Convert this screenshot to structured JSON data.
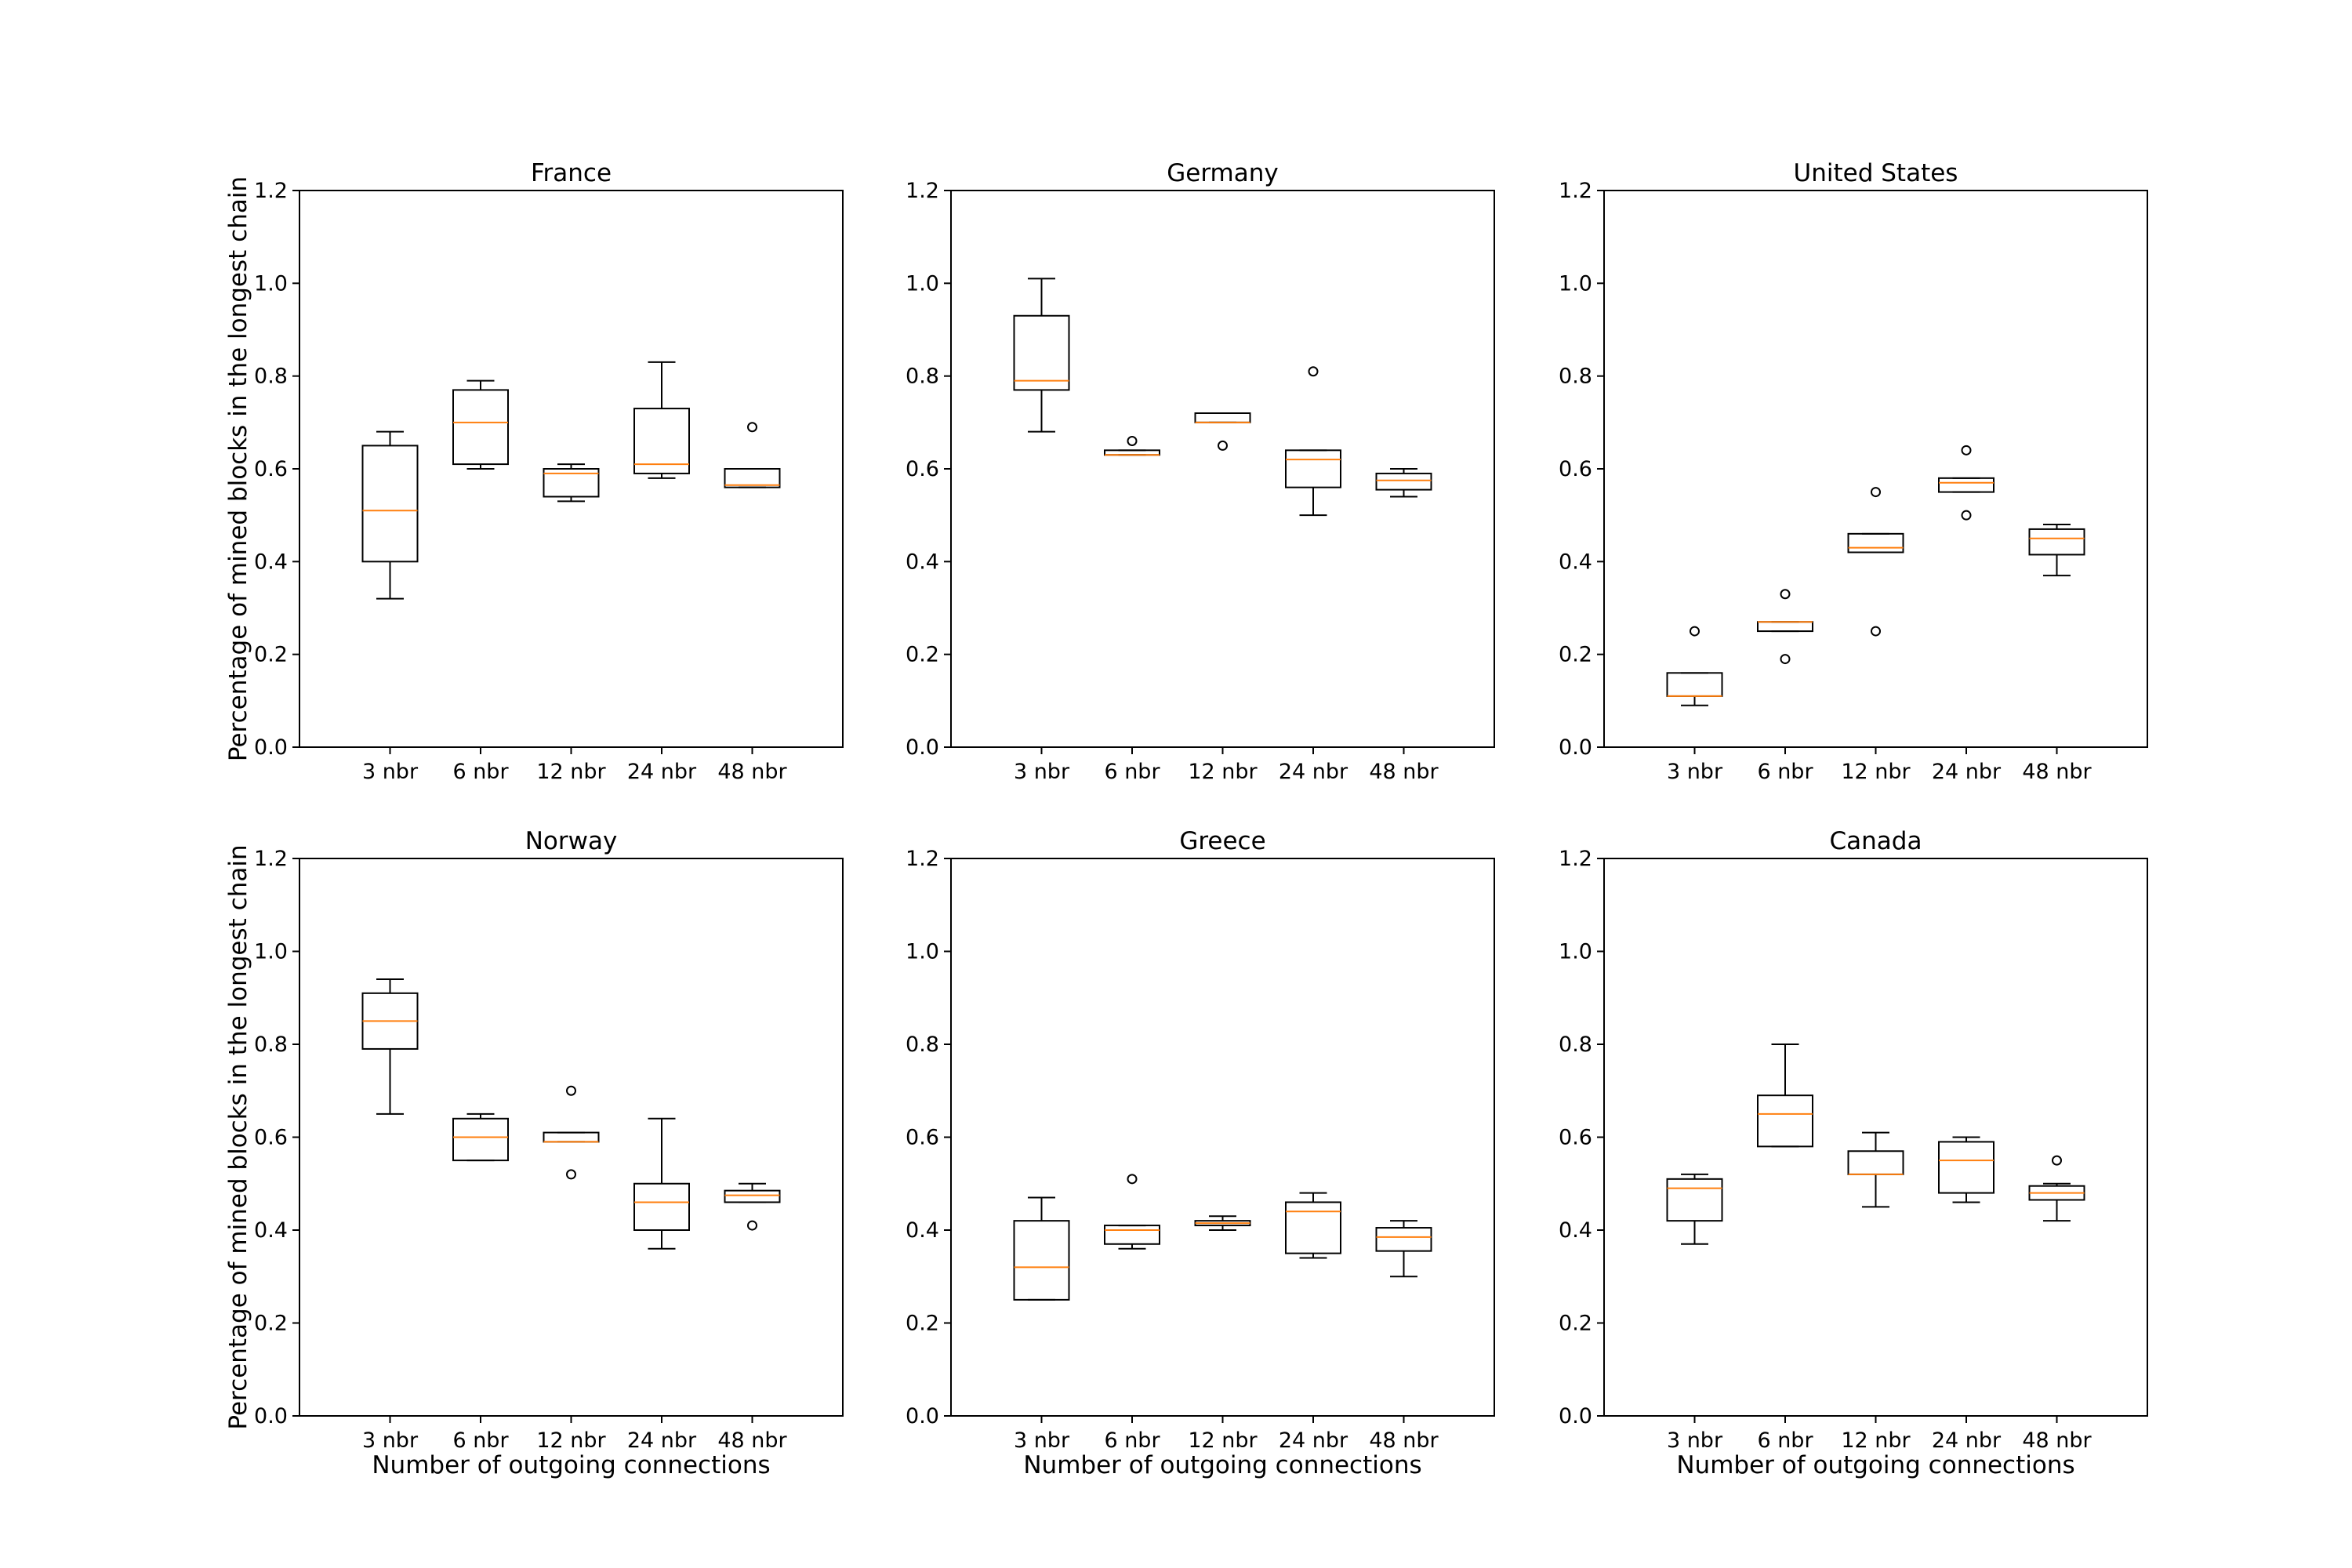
{
  "figure": {
    "shared_ylabel": "Percentage of mined blocks in the longest chain",
    "shared_xlabel": "Number of outgoing connections"
  },
  "colors": {
    "box": "#000000",
    "median": "#ff7f0e",
    "background": "#ffffff"
  },
  "chart_data": [
    {
      "type": "boxplot",
      "title": "France",
      "xlabel": "",
      "ylabel": "Percentage of mined blocks in the longest chain",
      "ylim": [
        0.0,
        1.2
      ],
      "yticks": [
        "0.0",
        "0.2",
        "0.4",
        "0.6",
        "0.8",
        "1.0",
        "1.2"
      ],
      "categories": [
        "3 nbr",
        "6 nbr",
        "12 nbr",
        "24 nbr",
        "48 nbr"
      ],
      "boxes": [
        {
          "whisker_low": 0.32,
          "q1": 0.4,
          "median": 0.51,
          "q3": 0.65,
          "whisker_high": 0.68,
          "outliers": []
        },
        {
          "whisker_low": 0.6,
          "q1": 0.61,
          "median": 0.7,
          "q3": 0.77,
          "whisker_high": 0.79,
          "outliers": []
        },
        {
          "whisker_low": 0.53,
          "q1": 0.54,
          "median": 0.59,
          "q3": 0.6,
          "whisker_high": 0.61,
          "outliers": []
        },
        {
          "whisker_low": 0.58,
          "q1": 0.59,
          "median": 0.61,
          "q3": 0.73,
          "whisker_high": 0.83,
          "outliers": []
        },
        {
          "whisker_low": 0.56,
          "q1": 0.56,
          "median": 0.565,
          "q3": 0.6,
          "whisker_high": 0.6,
          "outliers": [
            0.69
          ]
        }
      ]
    },
    {
      "type": "boxplot",
      "title": "Germany",
      "xlabel": "",
      "ylabel": "",
      "ylim": [
        0.0,
        1.2
      ],
      "yticks": [
        "0.0",
        "0.2",
        "0.4",
        "0.6",
        "0.8",
        "1.0",
        "1.2"
      ],
      "categories": [
        "3 nbr",
        "6 nbr",
        "12 nbr",
        "24 nbr",
        "48 nbr"
      ],
      "boxes": [
        {
          "whisker_low": 0.68,
          "q1": 0.77,
          "median": 0.79,
          "q3": 0.93,
          "whisker_high": 1.01,
          "outliers": []
        },
        {
          "whisker_low": 0.63,
          "q1": 0.63,
          "median": 0.63,
          "q3": 0.64,
          "whisker_high": 0.64,
          "outliers": [
            0.66
          ]
        },
        {
          "whisker_low": 0.7,
          "q1": 0.7,
          "median": 0.7,
          "q3": 0.72,
          "whisker_high": 0.72,
          "outliers": [
            0.65
          ]
        },
        {
          "whisker_low": 0.5,
          "q1": 0.56,
          "median": 0.62,
          "q3": 0.64,
          "whisker_high": 0.64,
          "outliers": [
            0.81
          ]
        },
        {
          "whisker_low": 0.54,
          "q1": 0.555,
          "median": 0.575,
          "q3": 0.59,
          "whisker_high": 0.6,
          "outliers": []
        }
      ]
    },
    {
      "type": "boxplot",
      "title": "United States",
      "xlabel": "",
      "ylabel": "",
      "ylim": [
        0.0,
        1.2
      ],
      "yticks": [
        "0.0",
        "0.2",
        "0.4",
        "0.6",
        "0.8",
        "1.0",
        "1.2"
      ],
      "categories": [
        "3 nbr",
        "6 nbr",
        "12 nbr",
        "24 nbr",
        "48 nbr"
      ],
      "boxes": [
        {
          "whisker_low": 0.09,
          "q1": 0.11,
          "median": 0.11,
          "q3": 0.16,
          "whisker_high": 0.16,
          "outliers": [
            0.25
          ]
        },
        {
          "whisker_low": 0.25,
          "q1": 0.25,
          "median": 0.27,
          "q3": 0.27,
          "whisker_high": 0.27,
          "outliers": [
            0.33,
            0.19
          ]
        },
        {
          "whisker_low": 0.42,
          "q1": 0.42,
          "median": 0.43,
          "q3": 0.46,
          "whisker_high": 0.46,
          "outliers": [
            0.55,
            0.25
          ]
        },
        {
          "whisker_low": 0.55,
          "q1": 0.55,
          "median": 0.57,
          "q3": 0.58,
          "whisker_high": 0.58,
          "outliers": [
            0.64,
            0.5
          ]
        },
        {
          "whisker_low": 0.37,
          "q1": 0.415,
          "median": 0.45,
          "q3": 0.47,
          "whisker_high": 0.48,
          "outliers": []
        }
      ]
    },
    {
      "type": "boxplot",
      "title": "Norway",
      "xlabel": "Number of outgoing connections",
      "ylabel": "Percentage of mined blocks in the longest chain",
      "ylim": [
        0.0,
        1.2
      ],
      "yticks": [
        "0.0",
        "0.2",
        "0.4",
        "0.6",
        "0.8",
        "1.0",
        "1.2"
      ],
      "categories": [
        "3 nbr",
        "6 nbr",
        "12 nbr",
        "24 nbr",
        "48 nbr"
      ],
      "boxes": [
        {
          "whisker_low": 0.65,
          "q1": 0.79,
          "median": 0.85,
          "q3": 0.91,
          "whisker_high": 0.94,
          "outliers": []
        },
        {
          "whisker_low": 0.55,
          "q1": 0.55,
          "median": 0.6,
          "q3": 0.64,
          "whisker_high": 0.65,
          "outliers": []
        },
        {
          "whisker_low": 0.59,
          "q1": 0.59,
          "median": 0.59,
          "q3": 0.61,
          "whisker_high": 0.61,
          "outliers": [
            0.7,
            0.52
          ]
        },
        {
          "whisker_low": 0.36,
          "q1": 0.4,
          "median": 0.46,
          "q3": 0.5,
          "whisker_high": 0.64,
          "outliers": []
        },
        {
          "whisker_low": 0.46,
          "q1": 0.46,
          "median": 0.475,
          "q3": 0.485,
          "whisker_high": 0.5,
          "outliers": [
            0.41
          ]
        }
      ]
    },
    {
      "type": "boxplot",
      "title": "Greece",
      "xlabel": "Number of outgoing connections",
      "ylabel": "",
      "ylim": [
        0.0,
        1.2
      ],
      "yticks": [
        "0.0",
        "0.2",
        "0.4",
        "0.6",
        "0.8",
        "1.0",
        "1.2"
      ],
      "categories": [
        "3 nbr",
        "6 nbr",
        "12 nbr",
        "24 nbr",
        "48 nbr"
      ],
      "boxes": [
        {
          "whisker_low": 0.25,
          "q1": 0.25,
          "median": 0.32,
          "q3": 0.42,
          "whisker_high": 0.47,
          "outliers": []
        },
        {
          "whisker_low": 0.36,
          "q1": 0.37,
          "median": 0.4,
          "q3": 0.41,
          "whisker_high": 0.41,
          "outliers": [
            0.51
          ]
        },
        {
          "whisker_low": 0.4,
          "q1": 0.41,
          "median": 0.415,
          "q3": 0.42,
          "whisker_high": 0.43,
          "outliers": []
        },
        {
          "whisker_low": 0.34,
          "q1": 0.35,
          "median": 0.44,
          "q3": 0.46,
          "whisker_high": 0.48,
          "outliers": []
        },
        {
          "whisker_low": 0.3,
          "q1": 0.355,
          "median": 0.385,
          "q3": 0.405,
          "whisker_high": 0.42,
          "outliers": []
        }
      ]
    },
    {
      "type": "boxplot",
      "title": "Canada",
      "xlabel": "Number of outgoing connections",
      "ylabel": "",
      "ylim": [
        0.0,
        1.2
      ],
      "yticks": [
        "0.0",
        "0.2",
        "0.4",
        "0.6",
        "0.8",
        "1.0",
        "1.2"
      ],
      "categories": [
        "3 nbr",
        "6 nbr",
        "12 nbr",
        "24 nbr",
        "48 nbr"
      ],
      "boxes": [
        {
          "whisker_low": 0.37,
          "q1": 0.42,
          "median": 0.49,
          "q3": 0.51,
          "whisker_high": 0.52,
          "outliers": []
        },
        {
          "whisker_low": 0.58,
          "q1": 0.58,
          "median": 0.65,
          "q3": 0.69,
          "whisker_high": 0.8,
          "outliers": []
        },
        {
          "whisker_low": 0.45,
          "q1": 0.52,
          "median": 0.52,
          "q3": 0.57,
          "whisker_high": 0.61,
          "outliers": []
        },
        {
          "whisker_low": 0.46,
          "q1": 0.48,
          "median": 0.55,
          "q3": 0.59,
          "whisker_high": 0.6,
          "outliers": []
        },
        {
          "whisker_low": 0.42,
          "q1": 0.465,
          "median": 0.48,
          "q3": 0.495,
          "whisker_high": 0.5,
          "outliers": [
            0.55
          ]
        }
      ]
    }
  ]
}
